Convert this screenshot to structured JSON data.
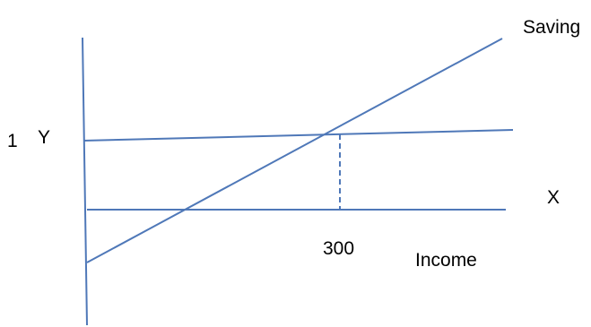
{
  "labels": {
    "saving": "Saving",
    "y_marker_number": "1",
    "y_marker_letter": "Y",
    "x_axis": "X",
    "income_value": "300",
    "income": "Income"
  },
  "colors": {
    "line": "#4f78b8",
    "text": "#000000"
  }
}
